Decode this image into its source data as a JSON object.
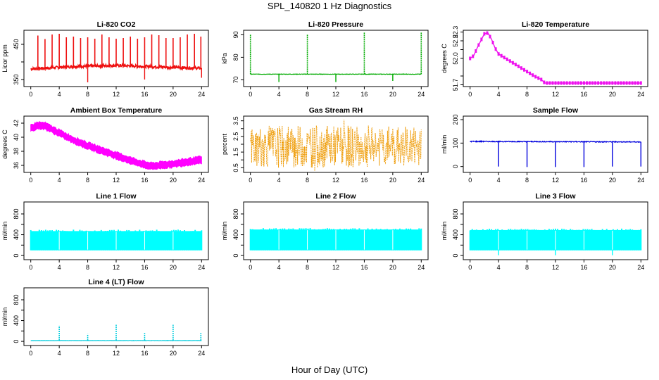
{
  "page": {
    "title": "SPL_140820  1 Hz Diagnostics",
    "xlabel": "Hour of Day (UTC)"
  },
  "chart_data": [
    {
      "type": "line",
      "title": "Li-820 CO2",
      "ylabel": "Licor ppm",
      "color": "#ee1111",
      "xlim": [
        0,
        24
      ],
      "xticks": [
        0,
        4,
        8,
        12,
        16,
        20,
        24
      ],
      "ylim": [
        330,
        490
      ],
      "yticks": [
        350,
        400,
        450
      ],
      "yticklabels": [
        "350",
        "",
        "450"
      ],
      "style": "noisy-spikes",
      "base": [
        [
          0,
          380
        ],
        [
          6,
          387
        ],
        [
          12,
          390
        ],
        [
          18,
          386
        ],
        [
          24,
          382
        ]
      ],
      "noise": 4,
      "spikes": [
        [
          1.0,
          475
        ],
        [
          2.0,
          465
        ],
        [
          3.0,
          478
        ],
        [
          4.0,
          480
        ],
        [
          5.0,
          470
        ],
        [
          6.0,
          472
        ],
        [
          7.0,
          468
        ],
        [
          8.0,
          470
        ],
        [
          9.0,
          466
        ],
        [
          10.0,
          478
        ],
        [
          11.0,
          470
        ],
        [
          12.0,
          466
        ],
        [
          13.0,
          468
        ],
        [
          14.0,
          472
        ],
        [
          15.0,
          466
        ],
        [
          16.0,
          470
        ],
        [
          17.0,
          478
        ],
        [
          18.0,
          476
        ],
        [
          19.0,
          468
        ],
        [
          20.0,
          468
        ],
        [
          21.0,
          470
        ],
        [
          22.0,
          478
        ],
        [
          23.0,
          480
        ],
        [
          23.9,
          472
        ]
      ],
      "dips": [
        [
          8.0,
          342
        ],
        [
          16.0,
          350
        ],
        [
          24.0,
          355
        ]
      ]
    },
    {
      "type": "line",
      "title": "Li-820 Pressure",
      "ylabel": "kPa",
      "color": "#00aa00",
      "xlim": [
        0,
        24
      ],
      "xticks": [
        0,
        4,
        8,
        12,
        16,
        20,
        24
      ],
      "ylim": [
        67,
        92
      ],
      "yticks": [
        70,
        80,
        90
      ],
      "yticklabels": [
        "70",
        "80",
        "90"
      ],
      "style": "flat-spikes",
      "base": [
        [
          0,
          72.5
        ],
        [
          24,
          72.5
        ]
      ],
      "noise": 0.1,
      "spikes": [
        [
          0.0,
          90
        ],
        [
          8.0,
          90
        ],
        [
          16.0,
          91
        ],
        [
          24.0,
          91
        ]
      ],
      "dips": [
        [
          4.0,
          69
        ],
        [
          12.0,
          69
        ],
        [
          20.0,
          69.5
        ]
      ]
    },
    {
      "type": "line",
      "title": "Li-820 Temperature",
      "ylabel": "degrees C",
      "color": "#ee11ee",
      "xlim": [
        0,
        24
      ],
      "xticks": [
        0,
        4,
        8,
        12,
        16,
        20,
        24
      ],
      "ylim": [
        51.68,
        52.32
      ],
      "yticks": [
        51.7,
        51.8,
        52.0,
        52.1,
        52.2,
        52.3
      ],
      "yticklabels": [
        "51.7",
        "",
        "52.0",
        "",
        "52.2",
        "52.3"
      ],
      "style": "steps",
      "points": [
        [
          0,
          52.0
        ],
        [
          0.5,
          52.03
        ],
        [
          1.0,
          52.12
        ],
        [
          1.5,
          52.2
        ],
        [
          2.0,
          52.28
        ],
        [
          2.5,
          52.29
        ],
        [
          3.0,
          52.22
        ],
        [
          3.5,
          52.12
        ],
        [
          4.0,
          52.05
        ],
        [
          5.0,
          52.0
        ],
        [
          6.0,
          51.95
        ],
        [
          7.0,
          51.9
        ],
        [
          8.0,
          51.85
        ],
        [
          9.0,
          51.8
        ],
        [
          10.0,
          51.76
        ],
        [
          10.5,
          51.72
        ],
        [
          12.0,
          51.72
        ],
        [
          16.0,
          51.72
        ],
        [
          20.0,
          51.72
        ],
        [
          24.0,
          51.72
        ]
      ]
    },
    {
      "type": "line",
      "title": "Ambient Box Temperature",
      "ylabel": "degrees C",
      "color": "#ff00ff",
      "xlim": [
        0,
        24
      ],
      "xticks": [
        0,
        4,
        8,
        12,
        16,
        20,
        24
      ],
      "ylim": [
        35,
        43
      ],
      "yticks": [
        36,
        38,
        40,
        42
      ],
      "yticklabels": [
        "36",
        "38",
        "40",
        "42"
      ],
      "style": "thick-band",
      "band": 0.9,
      "points": [
        [
          0,
          41.3
        ],
        [
          1,
          41.7
        ],
        [
          2,
          41.6
        ],
        [
          3,
          41.1
        ],
        [
          4,
          40.6
        ],
        [
          6,
          39.6
        ],
        [
          8,
          38.8
        ],
        [
          10,
          38.1
        ],
        [
          12,
          37.4
        ],
        [
          14,
          36.7
        ],
        [
          16,
          36.1
        ],
        [
          17,
          35.9
        ],
        [
          18,
          36.0
        ],
        [
          20,
          36.2
        ],
        [
          22,
          36.5
        ],
        [
          24,
          36.8
        ]
      ]
    },
    {
      "type": "line",
      "title": "Gas Stream RH",
      "ylabel": "percent",
      "color": "#ee9900",
      "xlim": [
        0,
        24
      ],
      "xticks": [
        0,
        4,
        8,
        12,
        16,
        20,
        24
      ],
      "ylim": [
        0.2,
        3.8
      ],
      "yticks": [
        0.5,
        1.0,
        1.5,
        2.0,
        2.5,
        3.0,
        3.5
      ],
      "yticklabels": [
        "0.5",
        "",
        "1.5",
        "",
        "2.5",
        "",
        "3.5"
      ],
      "style": "hash",
      "low": 0.5,
      "high": 3.2
    },
    {
      "type": "line",
      "title": "Sample Flow",
      "ylabel": "ml/min",
      "color": "#0000dd",
      "xlim": [
        0,
        24
      ],
      "xticks": [
        0,
        4,
        8,
        12,
        16,
        20,
        24
      ],
      "ylim": [
        -25,
        215
      ],
      "yticks": [
        0,
        100,
        200
      ],
      "yticklabels": [
        "0",
        "100",
        "200"
      ],
      "style": "flat-spikes",
      "base": [
        [
          0,
          107
        ],
        [
          24,
          105
        ]
      ],
      "noise": 2,
      "spikes": [],
      "dips": [
        [
          4.0,
          0
        ],
        [
          8.0,
          -2
        ],
        [
          12.0,
          -2
        ],
        [
          16.0,
          -2
        ],
        [
          20.0,
          0
        ],
        [
          24.0,
          0
        ]
      ]
    },
    {
      "type": "line",
      "title": "Line 1 Flow",
      "ylabel": "ml/min",
      "color": "#00ffff",
      "xlim": [
        0,
        24
      ],
      "xticks": [
        0,
        4,
        8,
        12,
        16,
        20,
        24
      ],
      "ylim": [
        -80,
        1030
      ],
      "yticks": [
        0,
        200,
        400,
        600,
        800
      ],
      "yticklabels": [
        "0",
        "",
        "400",
        "",
        "800"
      ],
      "style": "block",
      "low": 100,
      "high": 470,
      "gaps": [
        4,
        8,
        12,
        16,
        20
      ],
      "spikes": [],
      "dips": []
    },
    {
      "type": "line",
      "title": "Line 2 Flow",
      "ylabel": "ml/min",
      "color": "#00ffff",
      "xlim": [
        0,
        24
      ],
      "xticks": [
        0,
        4,
        8,
        12,
        16,
        20,
        24
      ],
      "ylim": [
        -80,
        1030
      ],
      "yticks": [
        0,
        200,
        400,
        600,
        800
      ],
      "yticklabels": [
        "0",
        "",
        "400",
        "",
        "800"
      ],
      "style": "block",
      "low": 100,
      "high": 500,
      "gaps": [
        4,
        8,
        12,
        16,
        20
      ],
      "spikes": [],
      "dips": []
    },
    {
      "type": "line",
      "title": "Line 3 Flow",
      "ylabel": "ml/min",
      "color": "#00ffff",
      "xlim": [
        0,
        24
      ],
      "xticks": [
        0,
        4,
        8,
        12,
        16,
        20,
        24
      ],
      "ylim": [
        -80,
        1030
      ],
      "yticks": [
        0,
        200,
        400,
        600,
        800
      ],
      "yticklabels": [
        "0",
        "",
        "400",
        "",
        "800"
      ],
      "style": "block",
      "low": 100,
      "high": 490,
      "gaps": [
        4,
        8,
        12,
        16,
        20
      ],
      "spikes": [],
      "dips": [
        [
          4.0,
          5
        ],
        [
          12.0,
          5
        ],
        [
          20.0,
          5
        ]
      ]
    },
    {
      "type": "line",
      "title": "Line 4 (LT) Flow",
      "ylabel": "ml/min",
      "color": "#00ccdd",
      "xlim": [
        0,
        24
      ],
      "xticks": [
        0,
        4,
        8,
        12,
        16,
        20,
        24
      ],
      "ylim": [
        -80,
        1030
      ],
      "yticks": [
        0,
        200,
        400,
        600,
        800
      ],
      "yticklabels": [
        "0",
        "",
        "400",
        "",
        "800"
      ],
      "style": "flat-spikes",
      "base": [
        [
          0,
          15
        ],
        [
          24,
          15
        ]
      ],
      "noise": 3,
      "spikes": [
        [
          4.0,
          300
        ],
        [
          8.0,
          140
        ],
        [
          12.0,
          320
        ],
        [
          16.0,
          160
        ],
        [
          20.0,
          320
        ],
        [
          23.9,
          160
        ]
      ],
      "dips": []
    }
  ]
}
